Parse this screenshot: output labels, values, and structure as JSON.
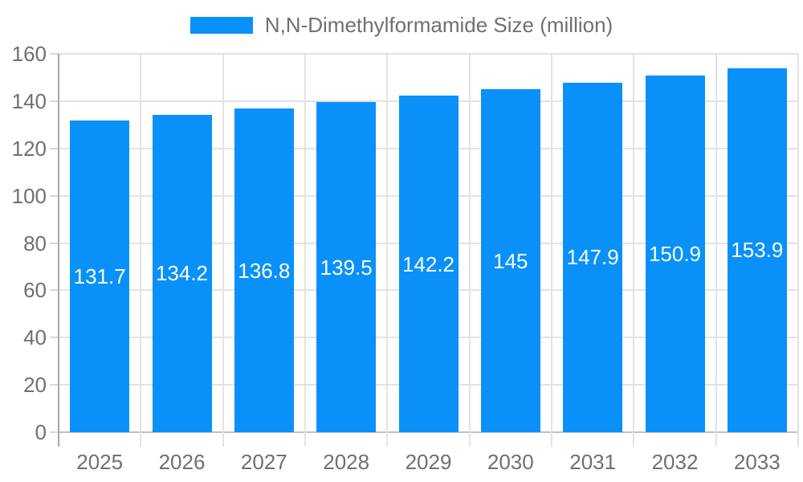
{
  "chart_data": {
    "type": "bar",
    "title": "N,N-Dimethylformamide Size (million)",
    "legend": "N,N-Dimethylformamide Size (million)",
    "legend_position": "top-center",
    "categories": [
      "2025",
      "2026",
      "2027",
      "2028",
      "2029",
      "2030",
      "2031",
      "2032",
      "2033"
    ],
    "values": [
      131.7,
      134.2,
      136.8,
      139.5,
      142.2,
      145,
      147.9,
      150.9,
      153.9
    ],
    "value_labels": [
      "131.7",
      "134.2",
      "136.8",
      "139.5",
      "142.2",
      "145",
      "147.9",
      "150.9",
      "153.9"
    ],
    "xlabel": "",
    "ylabel": "",
    "ylim": [
      0,
      160
    ],
    "yticks": [
      0,
      20,
      40,
      60,
      80,
      100,
      120,
      140,
      160
    ],
    "grid": true,
    "colors": {
      "bar": "#0991F9",
      "axis_text": "#707070",
      "grid_line": "#E3E3E3",
      "axis_line": "#A8A8A8",
      "baseline": "#C0C0C0",
      "tick_line": "#D9D9D9",
      "bar_label": "#FFFFFF",
      "background": "#FFFFFF"
    }
  }
}
